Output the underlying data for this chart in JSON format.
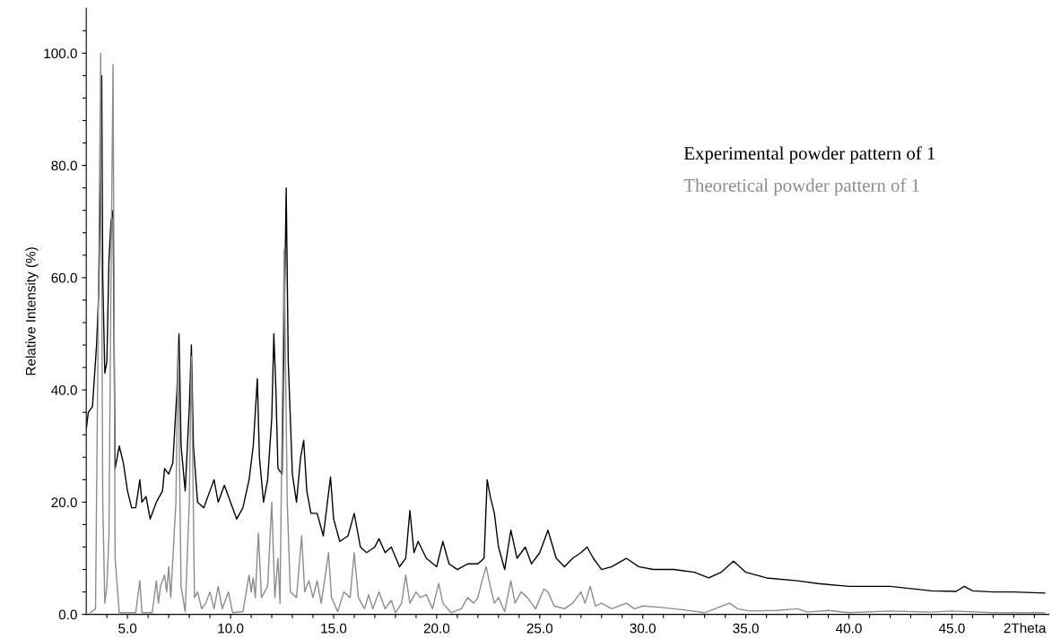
{
  "chart_data": {
    "type": "line",
    "xlabel": "2Theta",
    "ylabel": "Relative Intensity (%)",
    "xlim": [
      3.0,
      49.7
    ],
    "ylim": [
      0,
      108
    ],
    "xticks": [
      {
        "value": 4,
        "label": null
      },
      {
        "value": 5,
        "label": "5.0"
      },
      {
        "value": 6,
        "label": null
      },
      {
        "value": 7,
        "label": null
      },
      {
        "value": 8,
        "label": null
      },
      {
        "value": 9,
        "label": null
      },
      {
        "value": 10,
        "label": "10.0"
      },
      {
        "value": 11,
        "label": null
      },
      {
        "value": 12,
        "label": null
      },
      {
        "value": 13,
        "label": null
      },
      {
        "value": 14,
        "label": null
      },
      {
        "value": 15,
        "label": "15.0"
      },
      {
        "value": 16,
        "label": null
      },
      {
        "value": 17,
        "label": null
      },
      {
        "value": 18,
        "label": null
      },
      {
        "value": 19,
        "label": null
      },
      {
        "value": 20,
        "label": "20.0"
      },
      {
        "value": 21,
        "label": null
      },
      {
        "value": 22,
        "label": null
      },
      {
        "value": 23,
        "label": null
      },
      {
        "value": 24,
        "label": null
      },
      {
        "value": 25,
        "label": "25.0"
      },
      {
        "value": 26,
        "label": null
      },
      {
        "value": 27,
        "label": null
      },
      {
        "value": 28,
        "label": null
      },
      {
        "value": 29,
        "label": null
      },
      {
        "value": 30,
        "label": "30.0"
      },
      {
        "value": 31,
        "label": null
      },
      {
        "value": 32,
        "label": null
      },
      {
        "value": 33,
        "label": null
      },
      {
        "value": 34,
        "label": null
      },
      {
        "value": 35,
        "label": "35.0"
      },
      {
        "value": 36,
        "label": null
      },
      {
        "value": 37,
        "label": null
      },
      {
        "value": 38,
        "label": null
      },
      {
        "value": 39,
        "label": null
      },
      {
        "value": 40,
        "label": "40.0"
      },
      {
        "value": 41,
        "label": null
      },
      {
        "value": 42,
        "label": null
      },
      {
        "value": 43,
        "label": null
      },
      {
        "value": 44,
        "label": null
      },
      {
        "value": 45,
        "label": "45.0"
      },
      {
        "value": 46,
        "label": null
      },
      {
        "value": 47,
        "label": null
      },
      {
        "value": 48,
        "label": null
      },
      {
        "value": 49,
        "label": null
      }
    ],
    "yticks": [
      {
        "value": 0,
        "label": "0.0"
      },
      {
        "value": 4,
        "label": null
      },
      {
        "value": 8,
        "label": null
      },
      {
        "value": 12,
        "label": null
      },
      {
        "value": 16,
        "label": null
      },
      {
        "value": 20,
        "label": "20.0"
      },
      {
        "value": 24,
        "label": null
      },
      {
        "value": 28,
        "label": null
      },
      {
        "value": 32,
        "label": null
      },
      {
        "value": 36,
        "label": null
      },
      {
        "value": 40,
        "label": "40.0"
      },
      {
        "value": 44,
        "label": null
      },
      {
        "value": 48,
        "label": null
      },
      {
        "value": 52,
        "label": null
      },
      {
        "value": 56,
        "label": null
      },
      {
        "value": 60,
        "label": "60.0"
      },
      {
        "value": 64,
        "label": null
      },
      {
        "value": 68,
        "label": null
      },
      {
        "value": 72,
        "label": null
      },
      {
        "value": 76,
        "label": null
      },
      {
        "value": 80,
        "label": "80.0"
      },
      {
        "value": 84,
        "label": null
      },
      {
        "value": 88,
        "label": null
      },
      {
        "value": 92,
        "label": null
      },
      {
        "value": 96,
        "label": null
      },
      {
        "value": 100,
        "label": "100.0"
      },
      {
        "value": 104,
        "label": null
      }
    ],
    "grid": false,
    "legend": "top right",
    "marker": "none",
    "line_style": "solid",
    "series": [
      {
        "name": "Experimental powder pattern of 1",
        "color": "#000000",
        "x": [
          3.0,
          3.1,
          3.3,
          3.5,
          3.6,
          3.7,
          3.75,
          3.8,
          3.9,
          4.0,
          4.1,
          4.2,
          4.3,
          4.4,
          4.6,
          4.8,
          5.0,
          5.2,
          5.4,
          5.6,
          5.7,
          5.9,
          6.1,
          6.4,
          6.7,
          6.8,
          7.0,
          7.2,
          7.4,
          7.5,
          7.6,
          7.8,
          8.0,
          8.1,
          8.2,
          8.4,
          8.7,
          9.0,
          9.2,
          9.4,
          9.7,
          10.0,
          10.3,
          10.6,
          10.9,
          11.1,
          11.3,
          11.4,
          11.6,
          11.8,
          12.0,
          12.1,
          12.2,
          12.3,
          12.5,
          12.7,
          12.8,
          13.0,
          13.2,
          13.4,
          13.55,
          13.7,
          13.9,
          14.2,
          14.5,
          14.7,
          14.85,
          15.0,
          15.3,
          15.7,
          16.0,
          16.3,
          16.6,
          17.0,
          17.2,
          17.5,
          17.8,
          18.2,
          18.5,
          18.7,
          18.9,
          19.1,
          19.5,
          20.0,
          20.3,
          20.6,
          21.0,
          21.5,
          22.0,
          22.3,
          22.45,
          22.6,
          22.8,
          23.0,
          23.3,
          23.6,
          23.9,
          24.3,
          24.6,
          25.0,
          25.4,
          25.8,
          26.2,
          26.6,
          27.0,
          27.3,
          27.6,
          28.0,
          28.5,
          29.2,
          29.8,
          30.5,
          31.5,
          32.5,
          33.2,
          33.8,
          34.4,
          35.0,
          36.0,
          37.5,
          38.5,
          40.0,
          42.0,
          44.0,
          45.2,
          45.6,
          46.0,
          47.0,
          48.0,
          49.5
        ],
        "values": [
          33,
          36,
          37,
          48,
          57,
          78,
          96,
          60,
          43,
          45,
          63,
          70,
          72,
          26,
          30,
          27,
          22,
          19,
          19,
          24,
          20,
          21,
          17,
          20,
          22,
          26,
          25,
          27,
          40,
          50,
          30,
          22,
          37,
          48,
          30,
          20,
          19,
          22,
          24,
          20,
          23,
          20,
          17,
          19,
          24,
          30,
          42,
          28,
          20,
          24,
          35,
          50,
          40,
          26,
          25,
          76,
          45,
          25,
          20,
          28,
          31,
          22,
          18,
          18,
          14,
          20,
          24.5,
          17,
          13,
          14,
          18,
          12,
          11,
          12,
          13.5,
          11,
          12,
          8.5,
          10,
          18.5,
          11,
          13,
          10,
          8.5,
          13,
          9,
          8,
          9,
          9,
          10,
          24,
          21,
          18,
          12,
          8,
          15,
          10,
          12,
          9,
          11,
          15,
          10,
          8.5,
          10,
          11,
          12,
          10,
          8,
          8.5,
          10,
          8.5,
          8,
          8,
          7.5,
          6.5,
          7.5,
          9.5,
          7.5,
          6.5,
          6,
          5.5,
          5,
          5,
          4.2,
          4.1,
          5.0,
          4.2,
          4,
          4,
          3.8
        ]
      },
      {
        "name": "Theoretical powder pattern of 1",
        "color": "#8c8c8c",
        "x": [
          3.2,
          3.45,
          3.6,
          3.7,
          3.8,
          3.9,
          4.0,
          4.1,
          4.2,
          4.3,
          4.4,
          4.6,
          5.4,
          5.6,
          5.7,
          6.2,
          6.4,
          6.5,
          6.6,
          6.8,
          6.9,
          7.0,
          7.1,
          7.35,
          7.45,
          7.6,
          7.8,
          8.0,
          8.1,
          8.25,
          8.4,
          8.6,
          8.8,
          9.0,
          9.2,
          9.4,
          9.6,
          9.9,
          10.1,
          10.6,
          10.9,
          11.0,
          11.1,
          11.2,
          11.35,
          11.5,
          11.8,
          12.0,
          12.15,
          12.3,
          12.4,
          12.6,
          12.75,
          12.9,
          13.2,
          13.45,
          13.6,
          13.8,
          14.0,
          14.2,
          14.4,
          14.6,
          14.75,
          14.9,
          15.2,
          15.5,
          15.8,
          16.0,
          16.2,
          16.5,
          16.7,
          16.9,
          17.2,
          17.5,
          17.8,
          18.0,
          18.3,
          18.5,
          18.7,
          19.0,
          19.2,
          19.5,
          19.8,
          20.1,
          20.3,
          20.7,
          21.2,
          21.5,
          21.8,
          22.0,
          22.2,
          22.4,
          22.6,
          22.8,
          23.0,
          23.3,
          23.6,
          23.8,
          24.1,
          24.4,
          24.8,
          25.2,
          25.4,
          25.7,
          26.2,
          26.6,
          27.0,
          27.2,
          27.45,
          27.7,
          28.0,
          28.5,
          29.2,
          29.6,
          30.0,
          31.0,
          32.0,
          33.0,
          33.5,
          34.2,
          34.6,
          35.2,
          36.5,
          37.5,
          38.0,
          39.0,
          40.0,
          42.0,
          44.0,
          45.0,
          47.0,
          49.5
        ],
        "values": [
          0.3,
          1,
          60,
          100,
          20,
          2,
          5,
          14,
          60,
          98,
          10,
          0.3,
          0.3,
          6,
          0.3,
          0.3,
          6,
          2,
          5,
          7,
          4,
          8.5,
          3,
          20,
          48,
          5,
          0.5,
          20,
          46,
          3,
          4,
          1,
          2,
          4,
          1,
          5,
          1,
          4,
          0.3,
          0.5,
          7,
          4,
          6.5,
          3,
          14.5,
          3,
          5,
          20,
          3,
          10,
          2,
          65,
          20,
          4,
          3,
          14,
          4,
          6,
          3,
          6,
          2,
          7,
          11,
          3,
          0.5,
          4,
          3,
          11,
          3,
          1,
          3.5,
          1,
          4,
          1,
          2.5,
          0.3,
          2,
          7,
          2,
          4,
          3,
          3.5,
          1,
          5.5,
          2,
          0.3,
          1,
          3,
          2,
          3,
          6,
          8.5,
          5,
          2,
          3,
          0.5,
          6,
          2,
          4,
          3,
          1,
          4.5,
          4,
          1.5,
          1,
          2,
          4,
          2,
          5,
          1.5,
          2,
          1,
          2,
          1,
          1.5,
          1.2,
          0.8,
          0.3,
          1,
          2,
          1,
          0.6,
          0.7,
          1,
          0.4,
          0.7,
          0.3,
          0.6,
          0.4,
          0.6,
          0.3,
          0.3
        ]
      }
    ]
  }
}
